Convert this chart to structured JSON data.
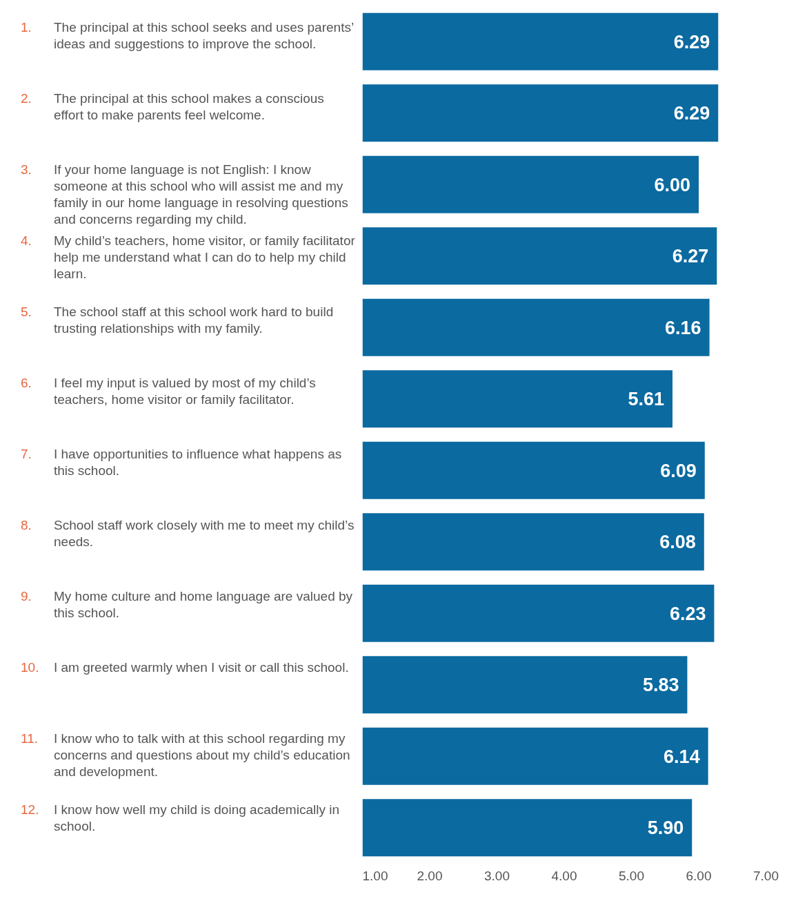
{
  "chart_data": {
    "type": "bar",
    "orientation": "horizontal",
    "categories": [
      "1. The principal at this school seeks and uses parents’ ideas and suggestions to improve the school.",
      "2. The principal at this school makes a conscious effort to make parents feel welcome.",
      "3. If your home language is not English: I know someone at this school who will assist me and my family in our home language in resolving questions and concerns regarding my child.",
      "4. My child’s teachers, home visitor, or family facilitator help me understand what I can do to help my child learn.",
      "5. The school staff at this school work hard to build trusting relationships with my family.",
      "6. I feel my input is valued by most of my child’s teachers, home visitor or family facilitator.",
      "7. I have opportunities to influence what happens as this school.",
      "8. School staff work closely with me to meet my child’s needs.",
      "9. My home culture and home language are valued by this school.",
      "10. I am greeted warmly when I visit or call this school.",
      "11. I know who to talk with at this school regarding my concerns and questions about my child’s education and development.",
      "12. I know how well my child is doing academically in school."
    ],
    "values": [
      6.29,
      6.29,
      6.0,
      6.27,
      6.16,
      5.61,
      6.09,
      6.08,
      6.23,
      5.83,
      6.14,
      5.9
    ],
    "color": "#0b6aa0",
    "xlim": [
      1,
      7
    ],
    "xticks": [
      {
        "value": 1,
        "label": "1.00"
      },
      {
        "value": 2,
        "label": "2.00"
      },
      {
        "value": 3,
        "label": "3.00"
      },
      {
        "value": 4,
        "label": "4.00"
      },
      {
        "value": 5,
        "label": "5.00"
      },
      {
        "value": 6,
        "label": "6.00"
      },
      {
        "value": 7,
        "label": "7.00"
      }
    ],
    "value_labels": [
      "6.29",
      "6.29",
      "6.00",
      "6.27",
      "6.16",
      "5.61",
      "6.09",
      "6.08",
      "6.23",
      "5.83",
      "6.14",
      "5.90"
    ],
    "grid": false
  }
}
